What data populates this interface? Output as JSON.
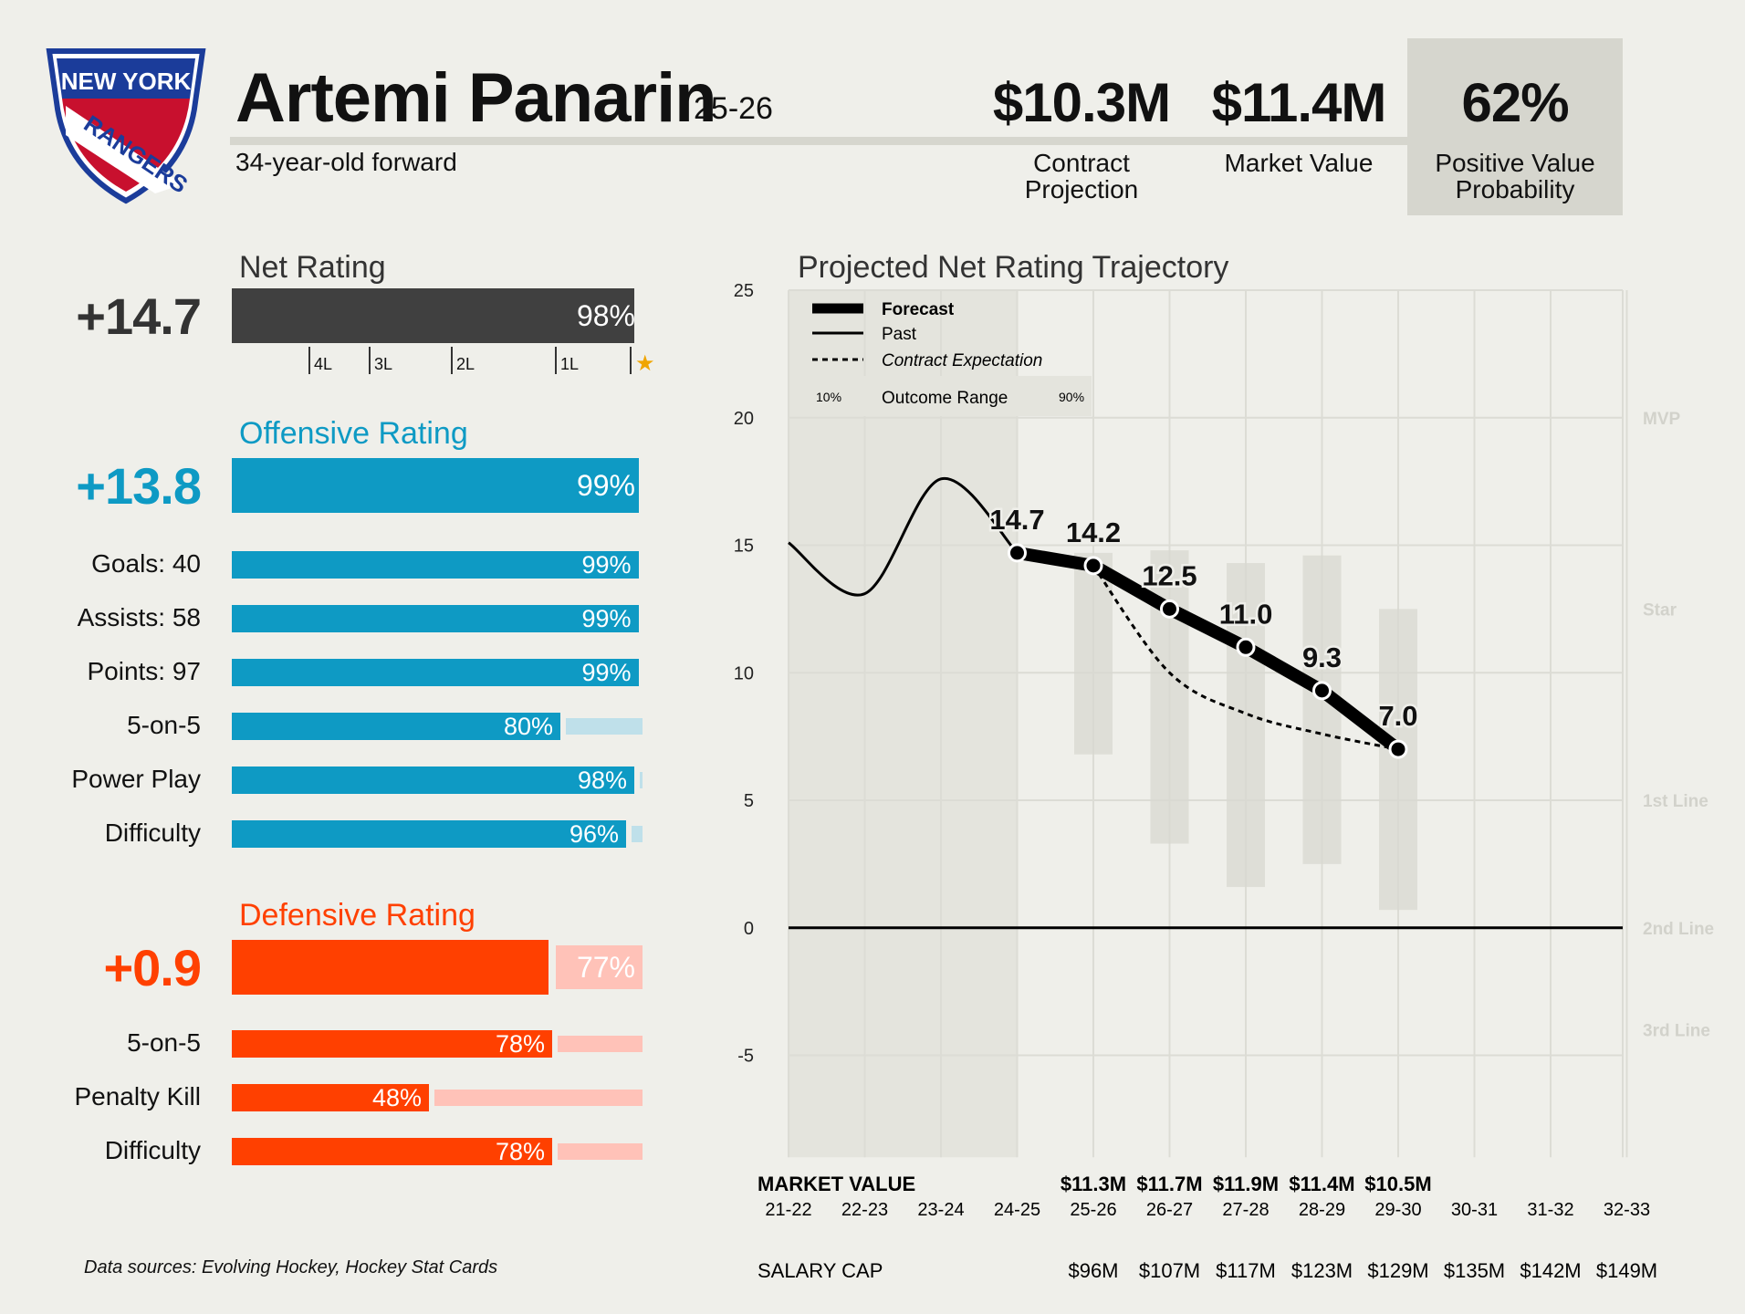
{
  "team": {
    "logo_top": "NEW YORK",
    "logo_bottom": "RANGERS",
    "colors": {
      "blue": "#1b3c9a",
      "red": "#c8102e"
    }
  },
  "player": {
    "name": "Artemi Panarin",
    "season": "25-26",
    "description": "34-year-old forward"
  },
  "header_stats": [
    {
      "value": "$10.3M",
      "label_1": "Contract",
      "label_2": "Projection"
    },
    {
      "value": "$11.4M",
      "label_1": "Market Value",
      "label_2": ""
    },
    {
      "value": "62%",
      "label_1": "Positive Value",
      "label_2": "Probability"
    }
  ],
  "net_rating": {
    "title": "Net Rating",
    "value": "+14.7",
    "pct": 0.98,
    "pct_label": "98%",
    "color": "#404040",
    "ticks": [
      "4L",
      "3L",
      "2L",
      "1L"
    ],
    "star": "★"
  },
  "offensive": {
    "title": "Offensive Rating",
    "value": "+13.8",
    "pct": 0.99,
    "pct_label": "99%",
    "color": "#0e9ac4",
    "track_color": "#bfe0ea",
    "rows": [
      {
        "label": "Goals: 40",
        "pct": 0.99,
        "pct_label": "99%"
      },
      {
        "label": "Assists: 58",
        "pct": 0.99,
        "pct_label": "99%"
      },
      {
        "label": "Points: 97",
        "pct": 0.99,
        "pct_label": "99%"
      },
      {
        "label": "5-on-5",
        "pct": 0.8,
        "pct_label": "80%"
      },
      {
        "label": "Power Play",
        "pct": 0.98,
        "pct_label": "98%"
      },
      {
        "label": "Difficulty",
        "pct": 0.96,
        "pct_label": "96%"
      }
    ]
  },
  "defensive": {
    "title": "Defensive Rating",
    "value": "+0.9",
    "pct": 0.77,
    "pct_label": "77%",
    "color": "#ff4000",
    "track_color": "#ffc2b8",
    "rows": [
      {
        "label": "5-on-5",
        "pct": 0.78,
        "pct_label": "78%"
      },
      {
        "label": "Penalty Kill",
        "pct": 0.48,
        "pct_label": "48%"
      },
      {
        "label": "Difficulty",
        "pct": 0.78,
        "pct_label": "78%"
      }
    ]
  },
  "chart_data": {
    "type": "line",
    "title": "Projected Net Rating Trajectory",
    "x": [
      "21-22",
      "22-23",
      "23-24",
      "24-25",
      "25-26",
      "26-27",
      "27-28",
      "28-29",
      "29-30",
      "30-31",
      "31-32",
      "32-33"
    ],
    "ylim": [
      -9,
      25
    ],
    "yticks": [
      25,
      20,
      15,
      10,
      5,
      0,
      -5
    ],
    "grid": true,
    "legend": {
      "position": "top-left",
      "forecast": "Forecast",
      "past": "Past",
      "contract": "Contract Expectation",
      "range_low": "10%",
      "range": "Outcome Range",
      "range_high": "90%"
    },
    "tiers": [
      {
        "label": "MVP",
        "y": 20
      },
      {
        "label": "Star",
        "y": 12.5
      },
      {
        "label": "1st Line",
        "y": 5
      },
      {
        "label": "2nd Line",
        "y": 0
      },
      {
        "label": "3rd Line",
        "y": -4
      }
    ],
    "series": [
      {
        "name": "Past",
        "points": [
          [
            "21-22",
            15.1
          ],
          [
            "22-23",
            13.1
          ],
          [
            "23-24",
            17.6
          ],
          [
            "24-25",
            14.7
          ]
        ]
      },
      {
        "name": "Forecast",
        "points": [
          [
            "24-25",
            14.7
          ],
          [
            "25-26",
            14.2
          ],
          [
            "26-27",
            12.5
          ],
          [
            "27-28",
            11.0
          ],
          [
            "28-29",
            9.3
          ],
          [
            "29-30",
            7.0
          ]
        ]
      },
      {
        "name": "Contract Expectation",
        "points": [
          [
            "25-26",
            14.2
          ],
          [
            "26-27",
            10.0
          ],
          [
            "27-28",
            8.4
          ],
          [
            "28-29",
            7.6
          ],
          [
            "29-30",
            7.0
          ]
        ]
      }
    ],
    "point_labels": [
      {
        "x": "24-25",
        "label": "14.7"
      },
      {
        "x": "25-26",
        "label": "14.2"
      },
      {
        "x": "26-27",
        "label": "12.5"
      },
      {
        "x": "27-28",
        "label": "11.0"
      },
      {
        "x": "28-29",
        "label": "9.3"
      },
      {
        "x": "29-30",
        "label": "7.0"
      }
    ],
    "outcome_range": [
      {
        "x": "25-26",
        "low": 6.8,
        "high": 14.7
      },
      {
        "x": "26-27",
        "low": 3.3,
        "high": 14.8
      },
      {
        "x": "27-28",
        "low": 1.6,
        "high": 14.3
      },
      {
        "x": "28-29",
        "low": 2.5,
        "high": 14.6
      },
      {
        "x": "29-30",
        "low": 0.7,
        "high": 12.5
      }
    ],
    "market_value_label": "MARKET VALUE",
    "market_values": {
      "25-26": "$11.3M",
      "26-27": "$11.7M",
      "27-28": "$11.9M",
      "28-29": "$11.4M",
      "29-30": "$10.5M"
    },
    "salary_cap_label": "SALARY CAP",
    "salary_cap": {
      "25-26": "$96M",
      "26-27": "$107M",
      "27-28": "$117M",
      "28-29": "$123M",
      "29-30": "$129M",
      "30-31": "$135M",
      "31-32": "$142M",
      "32-33": "$149M"
    }
  },
  "footnote": "Data sources: Evolving Hockey, Hockey Stat Cards"
}
